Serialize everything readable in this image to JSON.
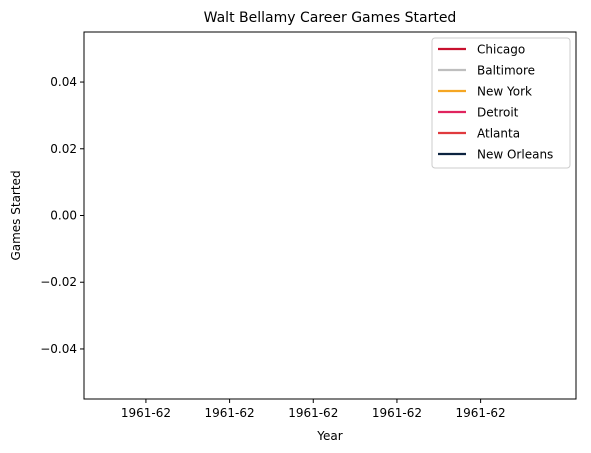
{
  "chart_data": {
    "type": "line",
    "title": "Walt Bellamy Career Games Started",
    "xlabel": "Year",
    "ylabel": "Games Started",
    "ylim": [
      -0.055,
      0.055
    ],
    "yticks": [
      -0.04,
      -0.02,
      0.0,
      0.02,
      0.04
    ],
    "ytick_labels": [
      "−0.04",
      "−0.02",
      "0.00",
      "0.02",
      "0.04"
    ],
    "xtick_labels": [
      "1961-62",
      "1961-62",
      "1961-62",
      "1961-62",
      "1961-62"
    ],
    "grid": false,
    "legend_position": "upper-right",
    "series": [
      {
        "name": "Chicago",
        "color": "#c8102e",
        "x": [],
        "y": []
      },
      {
        "name": "Baltimore",
        "color": "#bebebe",
        "x": [],
        "y": []
      },
      {
        "name": "New York",
        "color": "#f5a623",
        "x": [],
        "y": []
      },
      {
        "name": "Detroit",
        "color": "#e0245e",
        "x": [],
        "y": []
      },
      {
        "name": "Atlanta",
        "color": "#e03a3e",
        "x": [],
        "y": []
      },
      {
        "name": "New Orleans",
        "color": "#0c2340",
        "x": [],
        "y": []
      }
    ]
  }
}
